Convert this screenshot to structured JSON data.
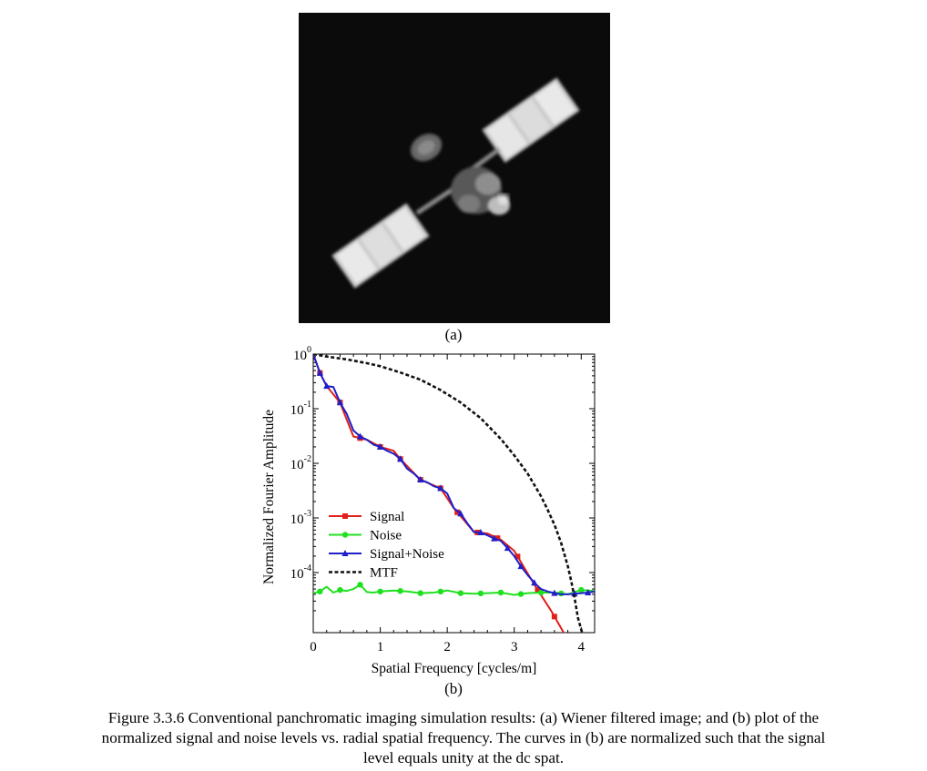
{
  "figure": {
    "panel_a_label": "(a)",
    "panel_b_label": "(b)",
    "caption_lines": [
      "Figure 3.3.6 Conventional panchromatic imaging simulation results: (a) Wiener filtered image; and (b) plot of the",
      "normalized signal and noise levels vs. radial spatial frequency. The curves in (b) are normalized such that the signal",
      "level equals unity at the dc spat."
    ]
  },
  "chart_data": {
    "type": "line",
    "xlabel": "Spatial Frequency [cycles/m]",
    "ylabel": "Normalized Fourier Amplitude",
    "xlim": [
      0,
      4.2
    ],
    "ylim_log10": [
      -5.1,
      0
    ],
    "yscale": "log",
    "x_ticks": [
      "0",
      "1",
      "2",
      "3",
      "4"
    ],
    "x_tick_values": [
      0,
      1,
      2,
      3,
      4
    ],
    "y_tick_values": [
      1,
      0.1,
      0.01,
      0.001,
      0.0001
    ],
    "y_ticks": [
      {
        "base": "10",
        "exp": "0"
      },
      {
        "base": "10",
        "exp": "-1"
      },
      {
        "base": "10",
        "exp": "-2"
      },
      {
        "base": "10",
        "exp": "-3"
      },
      {
        "base": "10",
        "exp": "-4"
      }
    ],
    "legend_position": "lower-left",
    "series": [
      {
        "name": "Signal",
        "color": "#e0201b",
        "marker": "square",
        "x": [
          0,
          0.1,
          0.2,
          0.4,
          0.6,
          0.8,
          1.0,
          1.2,
          1.3,
          1.6,
          1.9,
          2.1,
          2.4,
          2.6,
          2.8,
          3.0,
          3.3,
          3.55,
          3.75
        ],
        "y": [
          1,
          0.45,
          0.26,
          0.13,
          0.031,
          0.027,
          0.02,
          0.017,
          0.012,
          0.005,
          0.0035,
          0.0015,
          0.00055,
          0.00052,
          0.0004,
          0.00025,
          6e-05,
          2e-05,
          7.5e-06
        ],
        "marker_x": [
          0.1,
          0.4,
          0.7,
          1.0,
          1.3,
          1.6,
          1.9,
          2.15,
          2.45,
          2.75,
          3.05,
          3.35,
          3.6
        ]
      },
      {
        "name": "Noise",
        "color": "#1fe01f",
        "marker": "circle",
        "x": [
          0,
          0.1,
          0.2,
          0.3,
          0.4,
          0.5,
          0.6,
          0.7,
          0.8,
          0.9,
          1.0,
          1.2,
          1.4,
          1.6,
          1.8,
          2.0,
          2.2,
          2.4,
          2.6,
          2.8,
          3.0,
          3.2,
          3.4,
          3.6,
          3.8,
          4.0,
          4.2
        ],
        "y": [
          4.2e-05,
          4.5e-05,
          5.5e-05,
          4.3e-05,
          4.8e-05,
          4.6e-05,
          5e-05,
          6e-05,
          4.4e-05,
          4.3e-05,
          4.5e-05,
          4.7e-05,
          4.5e-05,
          4.2e-05,
          4.3e-05,
          4.7e-05,
          4.2e-05,
          4.1e-05,
          4.2e-05,
          4.3e-05,
          3.9e-05,
          4.2e-05,
          4.3e-05,
          4.3e-05,
          4e-05,
          4.8e-05,
          4.6e-05
        ],
        "marker_x": [
          0.1,
          0.4,
          0.7,
          1.0,
          1.3,
          1.6,
          1.9,
          2.2,
          2.5,
          2.8,
          3.1,
          3.4,
          3.7,
          4.0
        ]
      },
      {
        "name": "Signal+Noise",
        "color": "#1f1fc8",
        "marker": "triangle",
        "x": [
          0,
          0.1,
          0.2,
          0.3,
          0.4,
          0.5,
          0.6,
          0.7,
          0.8,
          0.9,
          1.0,
          1.1,
          1.2,
          1.3,
          1.4,
          1.5,
          1.6,
          1.7,
          1.8,
          1.9,
          2.0,
          2.1,
          2.2,
          2.3,
          2.4,
          2.5,
          2.6,
          2.7,
          2.8,
          2.9,
          3.0,
          3.1,
          3.2,
          3.3,
          3.4,
          3.5,
          3.6,
          3.7,
          3.8,
          3.9,
          4.0,
          4.1,
          4.2
        ],
        "y": [
          1,
          0.45,
          0.26,
          0.25,
          0.13,
          0.08,
          0.04,
          0.031,
          0.027,
          0.022,
          0.02,
          0.017,
          0.015,
          0.012,
          0.008,
          0.0065,
          0.005,
          0.0045,
          0.0038,
          0.0035,
          0.0028,
          0.0015,
          0.0012,
          0.0008,
          0.00055,
          0.00054,
          0.00048,
          0.00042,
          0.00038,
          0.00028,
          0.0002,
          0.00013,
          9e-05,
          6.5e-05,
          5e-05,
          4.5e-05,
          4.2e-05,
          4e-05,
          4e-05,
          4.1e-05,
          4.2e-05,
          4.3e-05,
          4.5e-05
        ],
        "marker_x": [
          0.1,
          0.2,
          0.4,
          0.7,
          1.0,
          1.3,
          1.6,
          1.9,
          2.2,
          2.5,
          2.7,
          2.9,
          3.1,
          3.3,
          3.6,
          3.9,
          4.1
        ]
      },
      {
        "name": "MTF",
        "color": "#111111",
        "dash": true,
        "x": [
          0,
          0.2,
          0.5,
          0.8,
          1.0,
          1.3,
          1.6,
          1.9,
          2.2,
          2.5,
          2.8,
          3.0,
          3.2,
          3.4,
          3.5,
          3.6,
          3.7,
          3.8,
          3.85,
          3.9,
          3.95,
          4.0,
          4.02
        ],
        "y": [
          1,
          0.9,
          0.8,
          0.68,
          0.6,
          0.46,
          0.34,
          0.22,
          0.13,
          0.067,
          0.028,
          0.014,
          0.0065,
          0.0025,
          0.0014,
          0.00075,
          0.00035,
          0.00013,
          7e-05,
          3.5e-05,
          1.5e-05,
          9e-06,
          7.5e-06
        ]
      }
    ]
  }
}
